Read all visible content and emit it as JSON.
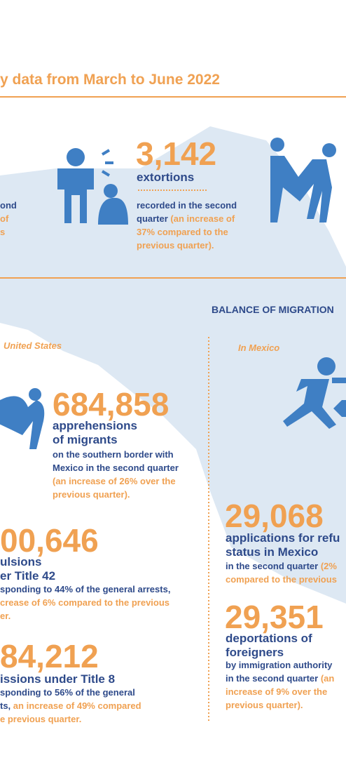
{
  "header": {
    "title": "y data from March to June 2022"
  },
  "left_fragments": {
    "line1": "ond",
    "line2": "of",
    "line3": "s"
  },
  "extortions": {
    "number": "3,142",
    "label": "extortions",
    "text": "recorded in the second quarter",
    "note": "(an increase of 37% compared to the previous quarter)."
  },
  "balance": {
    "title": "BALANCE OF MIGRATION",
    "united_states": "United States",
    "mexico": "In Mexico"
  },
  "apprehensions": {
    "number": "684,858",
    "label1": "apprehensions",
    "label2": "of migrants",
    "text": "on the southern border with Mexico in the second quarter",
    "note": "(an increase of 26% over the previous quarter)."
  },
  "title42": {
    "number": "00,646",
    "label1": "ulsions",
    "label2": "er Title 42",
    "line1": "sponding to 44% of the general arrests,",
    "line2": "crease of 6% compared to the previous",
    "line3": "er."
  },
  "title8": {
    "number": "84,212",
    "label": "issions under Title 8",
    "line1": "sponding to 56% of the general",
    "line2a": "ts,",
    "line2b": "an increase of 49% compared",
    "line3": "e previous quarter."
  },
  "refugee": {
    "number": "29,068",
    "label1": "applications for refu",
    "label2": "status in Mexico",
    "line1": "in the second quarter",
    "line1b": "(2%",
    "line2": "compared to the previous"
  },
  "deportations": {
    "number": "29,351",
    "label1": "deportations of",
    "label2": "foreigners",
    "line1": "by immigration authority",
    "line2a": "in the second quarter",
    "line2b": "(an",
    "line3": "increase of 9% over the",
    "line4": "previous quarter)."
  }
}
